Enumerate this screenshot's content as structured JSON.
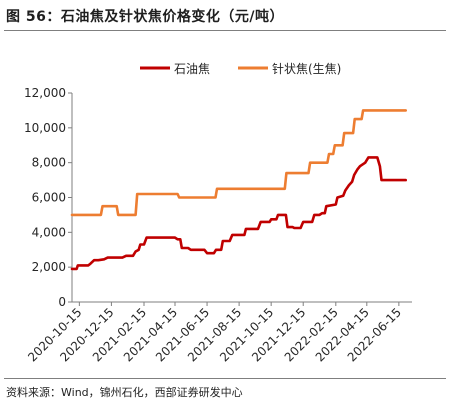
{
  "figure": {
    "title": "图 56：石油焦及针状焦价格变化（元/吨）",
    "source": "资料来源：Wind，锦州石化，西部证券研发中心"
  },
  "chart_data": {
    "type": "line",
    "title": "",
    "xlabel": "",
    "ylabel": "",
    "ylim": [
      0,
      12000
    ],
    "yticks": [
      0,
      2000,
      4000,
      6000,
      8000,
      10000,
      12000
    ],
    "ytick_labels": [
      "0",
      "2,000",
      "4,000",
      "6,000",
      "8,000",
      "10,000",
      "12,000"
    ],
    "x_range": [
      "2020-10-01",
      "2022-07-10"
    ],
    "xticks": [
      "2020-10-15",
      "2020-12-15",
      "2021-02-15",
      "2021-04-15",
      "2021-06-15",
      "2021-08-15",
      "2021-10-15",
      "2021-12-15",
      "2022-02-15",
      "2022-04-15",
      "2022-06-15"
    ],
    "grid": false,
    "legend_position": "top-center",
    "series": [
      {
        "name": "石油焦",
        "color": "#c00000",
        "points": [
          [
            "2020-10-01",
            1900
          ],
          [
            "2020-10-10",
            1900
          ],
          [
            "2020-10-12",
            2100
          ],
          [
            "2020-11-01",
            2100
          ],
          [
            "2020-11-05",
            2200
          ],
          [
            "2020-11-12",
            2400
          ],
          [
            "2020-11-20",
            2400
          ],
          [
            "2020-12-01",
            2450
          ],
          [
            "2020-12-08",
            2550
          ],
          [
            "2021-01-05",
            2550
          ],
          [
            "2021-01-12",
            2650
          ],
          [
            "2021-01-25",
            2650
          ],
          [
            "2021-01-30",
            2900
          ],
          [
            "2021-02-05",
            3000
          ],
          [
            "2021-02-08",
            3300
          ],
          [
            "2021-02-15",
            3300
          ],
          [
            "2021-02-20",
            3700
          ],
          [
            "2021-04-15",
            3700
          ],
          [
            "2021-04-20",
            3600
          ],
          [
            "2021-04-25",
            3600
          ],
          [
            "2021-04-28",
            3100
          ],
          [
            "2021-05-10",
            3100
          ],
          [
            "2021-05-15",
            3000
          ],
          [
            "2021-06-10",
            3000
          ],
          [
            "2021-06-15",
            2800
          ],
          [
            "2021-06-28",
            2800
          ],
          [
            "2021-07-02",
            3000
          ],
          [
            "2021-07-12",
            3000
          ],
          [
            "2021-07-15",
            3500
          ],
          [
            "2021-07-28",
            3500
          ],
          [
            "2021-08-02",
            3850
          ],
          [
            "2021-08-25",
            3850
          ],
          [
            "2021-08-28",
            4200
          ],
          [
            "2021-09-20",
            4200
          ],
          [
            "2021-09-25",
            4600
          ],
          [
            "2021-10-12",
            4600
          ],
          [
            "2021-10-15",
            4750
          ],
          [
            "2021-10-25",
            4750
          ],
          [
            "2021-10-28",
            5000
          ],
          [
            "2021-11-12",
            5000
          ],
          [
            "2021-11-15",
            4300
          ],
          [
            "2021-11-25",
            4300
          ],
          [
            "2021-11-28",
            4250
          ],
          [
            "2021-12-10",
            4250
          ],
          [
            "2021-12-15",
            4600
          ],
          [
            "2022-01-01",
            4600
          ],
          [
            "2022-01-05",
            5000
          ],
          [
            "2022-01-15",
            5000
          ],
          [
            "2022-01-20",
            5100
          ],
          [
            "2022-01-25",
            5100
          ],
          [
            "2022-01-28",
            5500
          ],
          [
            "2022-02-15",
            5600
          ],
          [
            "2022-02-18",
            6000
          ],
          [
            "2022-03-01",
            6100
          ],
          [
            "2022-03-05",
            6400
          ],
          [
            "2022-03-12",
            6700
          ],
          [
            "2022-03-18",
            6900
          ],
          [
            "2022-03-22",
            7300
          ],
          [
            "2022-03-28",
            7600
          ],
          [
            "2022-04-02",
            7800
          ],
          [
            "2022-04-12",
            8000
          ],
          [
            "2022-04-18",
            8300
          ],
          [
            "2022-05-05",
            8300
          ],
          [
            "2022-05-10",
            7800
          ],
          [
            "2022-05-13",
            7000
          ],
          [
            "2022-06-28",
            7000
          ]
        ]
      },
      {
        "name": "针状焦(生焦)",
        "color": "#ed7d31",
        "points": [
          [
            "2020-10-01",
            5000
          ],
          [
            "2020-11-25",
            5000
          ],
          [
            "2020-11-28",
            5500
          ],
          [
            "2020-12-25",
            5500
          ],
          [
            "2020-12-28",
            5000
          ],
          [
            "2021-01-30",
            5000
          ],
          [
            "2021-02-02",
            6200
          ],
          [
            "2021-04-20",
            6200
          ],
          [
            "2021-04-23",
            6000
          ],
          [
            "2021-07-01",
            6000
          ],
          [
            "2021-07-04",
            6500
          ],
          [
            "2021-11-10",
            6500
          ],
          [
            "2021-11-13",
            7400
          ],
          [
            "2021-12-25",
            7400
          ],
          [
            "2021-12-28",
            8000
          ],
          [
            "2022-01-30",
            8000
          ],
          [
            "2022-02-02",
            8500
          ],
          [
            "2022-02-10",
            8500
          ],
          [
            "2022-02-13",
            9000
          ],
          [
            "2022-02-28",
            9000
          ],
          [
            "2022-03-03",
            9700
          ],
          [
            "2022-03-20",
            9700
          ],
          [
            "2022-03-23",
            10500
          ],
          [
            "2022-04-05",
            10500
          ],
          [
            "2022-04-08",
            11000
          ],
          [
            "2022-06-28",
            11000
          ]
        ]
      }
    ]
  }
}
